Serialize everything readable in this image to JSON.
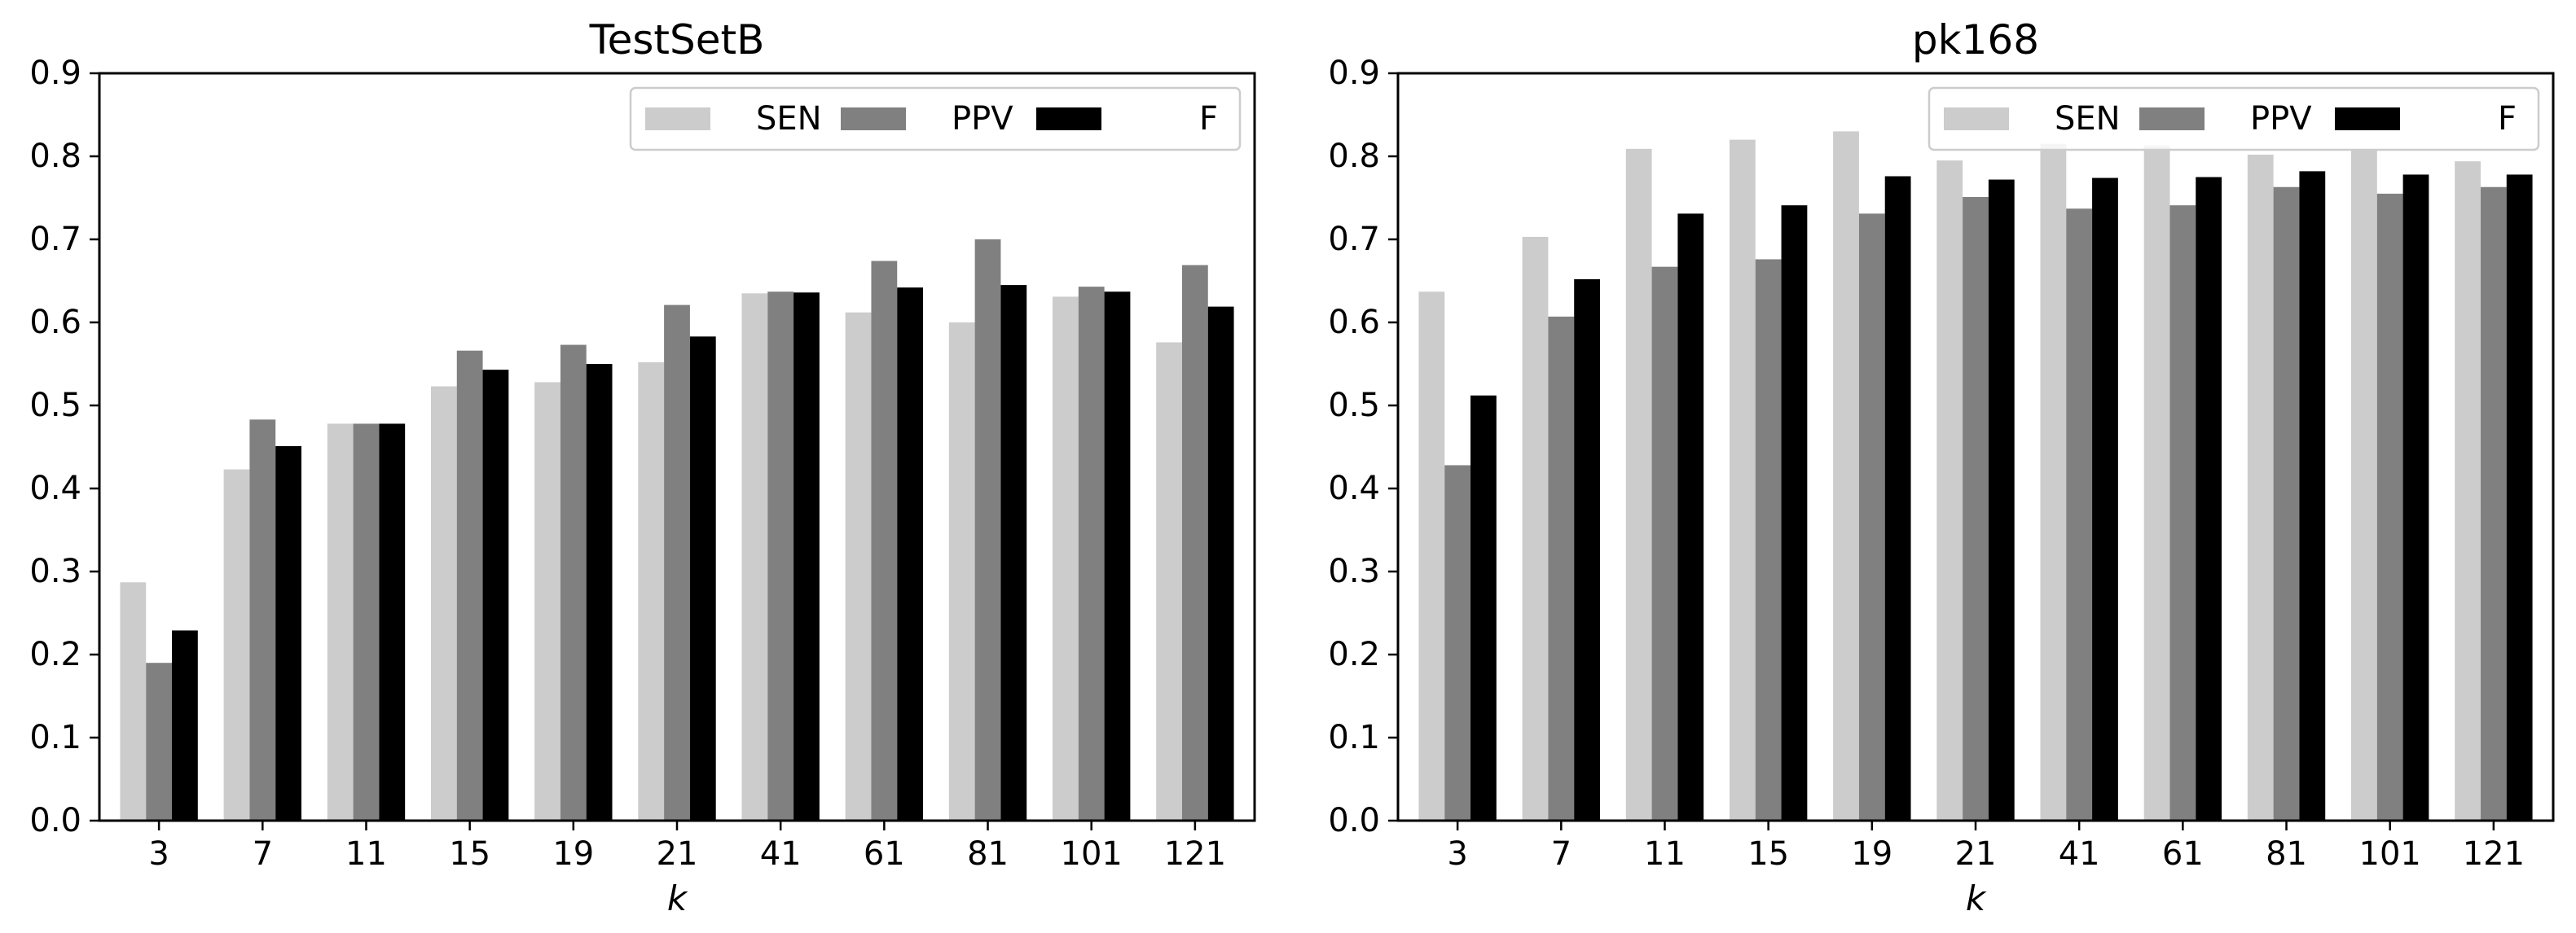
{
  "chart_data": [
    {
      "type": "bar",
      "title": "TestSetB",
      "xlabel": "k",
      "ylabel": "",
      "ylim": [
        0,
        0.9
      ],
      "yticks": [
        0.0,
        0.1,
        0.2,
        0.3,
        0.4,
        0.5,
        0.6,
        0.7,
        0.8,
        0.9
      ],
      "ytick_labels": [
        "0.0",
        "0.1",
        "0.2",
        "0.3",
        "0.4",
        "0.5",
        "0.6",
        "0.7",
        "0.8",
        "0.9"
      ],
      "categories": [
        "3",
        "7",
        "11",
        "15",
        "19",
        "21",
        "41",
        "61",
        "81",
        "101",
        "121"
      ],
      "legend": "top-right",
      "grid": false,
      "series": [
        {
          "name": "SEN",
          "color": "#cccccc",
          "values": [
            0.287,
            0.423,
            0.478,
            0.523,
            0.528,
            0.552,
            0.635,
            0.612,
            0.6,
            0.631,
            0.576
          ]
        },
        {
          "name": "PPV",
          "color": "#808080",
          "values": [
            0.19,
            0.483,
            0.478,
            0.566,
            0.573,
            0.621,
            0.637,
            0.674,
            0.7,
            0.643,
            0.669
          ]
        },
        {
          "name": "F",
          "color": "#000000",
          "values": [
            0.229,
            0.451,
            0.478,
            0.543,
            0.55,
            0.583,
            0.636,
            0.642,
            0.645,
            0.637,
            0.619
          ]
        }
      ]
    },
    {
      "type": "bar",
      "title": "pk168",
      "xlabel": "k",
      "ylabel": "",
      "ylim": [
        0,
        0.9
      ],
      "yticks": [
        0.0,
        0.1,
        0.2,
        0.3,
        0.4,
        0.5,
        0.6,
        0.7,
        0.8,
        0.9
      ],
      "ytick_labels": [
        "0.0",
        "0.1",
        "0.2",
        "0.3",
        "0.4",
        "0.5",
        "0.6",
        "0.7",
        "0.8",
        "0.9"
      ],
      "categories": [
        "3",
        "7",
        "11",
        "15",
        "19",
        "21",
        "41",
        "61",
        "81",
        "101",
        "121"
      ],
      "legend": "top-right",
      "grid": false,
      "series": [
        {
          "name": "SEN",
          "color": "#cccccc",
          "values": [
            0.637,
            0.703,
            0.809,
            0.82,
            0.83,
            0.795,
            0.815,
            0.813,
            0.802,
            0.808,
            0.794
          ]
        },
        {
          "name": "PPV",
          "color": "#808080",
          "values": [
            0.428,
            0.607,
            0.667,
            0.676,
            0.731,
            0.751,
            0.737,
            0.741,
            0.763,
            0.755,
            0.763
          ]
        },
        {
          "name": "F",
          "color": "#000000",
          "values": [
            0.512,
            0.652,
            0.731,
            0.741,
            0.776,
            0.772,
            0.774,
            0.775,
            0.782,
            0.778,
            0.778
          ]
        }
      ]
    }
  ]
}
